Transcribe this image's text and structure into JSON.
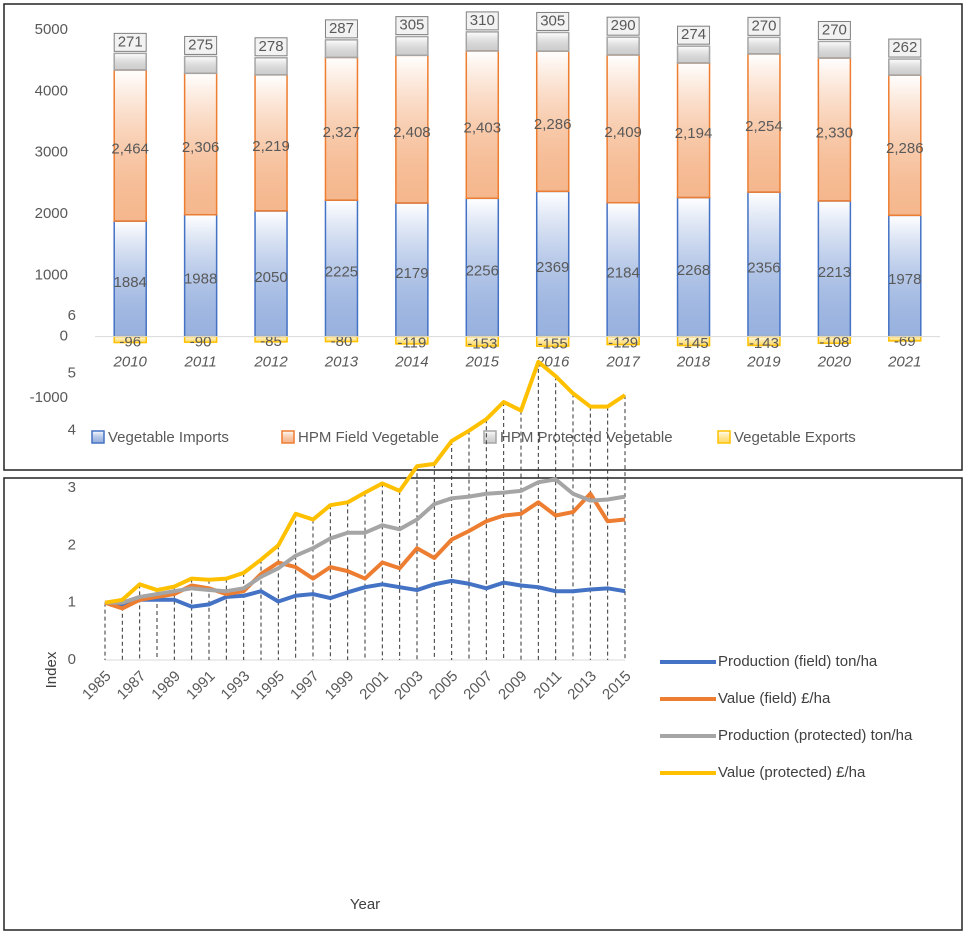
{
  "chart_data": [
    {
      "type": "bar",
      "stacked": true,
      "categories": [
        "2010",
        "2011",
        "2012",
        "2013",
        "2014",
        "2015",
        "2016",
        "2017",
        "2018",
        "2019",
        "2020",
        "2021"
      ],
      "series": [
        {
          "name": "Vegetable Imports",
          "color": "#4472c4",
          "values": [
            1884,
            1988,
            2050,
            2225,
            2179,
            2256,
            2369,
            2184,
            2268,
            2356,
            2213,
            1978
          ]
        },
        {
          "name": "HPM Field Vegetable",
          "color": "#ed7d31",
          "values": [
            2464,
            2306,
            2219,
            2327,
            2408,
            2403,
            2286,
            2409,
            2194,
            2254,
            2330,
            2286
          ],
          "value_labels": [
            "2,464",
            "2,306",
            "2,219",
            "2,327",
            "2,408",
            "2,403",
            "2,286",
            "2,409",
            "2,194",
            "2,254",
            "2,330",
            "2,286"
          ]
        },
        {
          "name": "HPM Protected Vegetable",
          "color": "#a5a5a5",
          "values": [
            271,
            275,
            278,
            287,
            305,
            310,
            305,
            290,
            274,
            270,
            270,
            262
          ]
        },
        {
          "name": "Vegetable Exports",
          "color": "#ffc000",
          "values": [
            -96,
            -90,
            -85,
            -80,
            -119,
            -153,
            -155,
            -129,
            -145,
            -143,
            -108,
            -69
          ]
        }
      ],
      "ylim": [
        -1000,
        5000
      ],
      "yticks": [
        -1000,
        0,
        1000,
        2000,
        3000,
        4000,
        5000
      ],
      "grid": false,
      "legend": "bottom"
    },
    {
      "type": "line",
      "x_label": "Year",
      "y_label": "Index",
      "x": [
        1985,
        1986,
        1987,
        1988,
        1989,
        1990,
        1991,
        1992,
        1993,
        1994,
        1995,
        1996,
        1997,
        1998,
        1999,
        2000,
        2001,
        2002,
        2003,
        2004,
        2005,
        2006,
        2007,
        2008,
        2009,
        2010,
        2011,
        2012,
        2013,
        2014,
        2015
      ],
      "series": [
        {
          "name": "Production (field) ton/ha",
          "color": "#4472c4",
          "values": [
            1.0,
            0.95,
            1.05,
            1.05,
            1.05,
            0.93,
            0.97,
            1.1,
            1.12,
            1.2,
            1.02,
            1.12,
            1.15,
            1.08,
            1.18,
            1.27,
            1.32,
            1.27,
            1.22,
            1.32,
            1.38,
            1.33,
            1.25,
            1.35,
            1.3,
            1.27,
            1.2,
            1.2,
            1.23,
            1.25,
            1.2
          ]
        },
        {
          "name": "Value (field) £/ha",
          "color": "#ed7d31",
          "values": [
            1.0,
            0.9,
            1.05,
            1.1,
            1.15,
            1.3,
            1.25,
            1.15,
            1.2,
            1.5,
            1.7,
            1.62,
            1.42,
            1.62,
            1.55,
            1.42,
            1.7,
            1.6,
            1.95,
            1.78,
            2.1,
            2.25,
            2.42,
            2.52,
            2.55,
            2.75,
            2.52,
            2.58,
            2.9,
            2.42,
            2.45
          ]
        },
        {
          "name": "Production (protected) ton/ha",
          "color": "#a5a5a5",
          "values": [
            1.0,
            1.0,
            1.1,
            1.15,
            1.2,
            1.25,
            1.22,
            1.2,
            1.25,
            1.45,
            1.6,
            1.82,
            1.95,
            2.12,
            2.22,
            2.22,
            2.35,
            2.28,
            2.45,
            2.72,
            2.82,
            2.85,
            2.9,
            2.92,
            2.95,
            3.1,
            3.15,
            2.9,
            2.78,
            2.8,
            2.85
          ]
        },
        {
          "name": "Value (protected) £/ha",
          "color": "#ffc000",
          "values": [
            1.0,
            1.05,
            1.32,
            1.22,
            1.28,
            1.42,
            1.4,
            1.42,
            1.52,
            1.75,
            2.0,
            2.55,
            2.45,
            2.7,
            2.75,
            2.92,
            3.08,
            2.95,
            3.38,
            3.42,
            3.82,
            4.0,
            4.2,
            4.5,
            4.35,
            5.2,
            4.95,
            4.65,
            4.42,
            4.42,
            4.62
          ]
        }
      ],
      "xlim": [
        1985,
        2015
      ],
      "xticks": [
        1985,
        1987,
        1989,
        1991,
        1993,
        1995,
        1997,
        1999,
        2001,
        2003,
        2005,
        2007,
        2009,
        2011,
        2013,
        2015
      ],
      "ylim": [
        0,
        6
      ],
      "yticks": [
        0,
        1,
        2,
        3,
        4,
        5,
        6
      ],
      "drop_lines": true,
      "legend": "right"
    }
  ]
}
